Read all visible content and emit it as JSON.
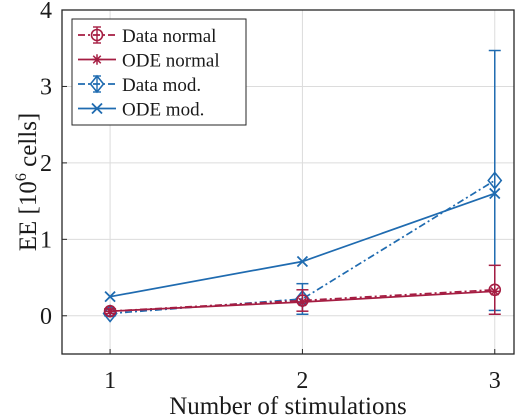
{
  "chart_data": {
    "type": "line",
    "xlabel": "Number of stimulations",
    "ylabel": "EE [10⁶ cells]",
    "ylabel_main": "EE [10",
    "ylabel_sup": "6",
    "ylabel_tail": " cells]",
    "xlim": [
      0.75,
      3.1
    ],
    "ylim": [
      -0.5,
      4
    ],
    "xticks": [
      1,
      2,
      3
    ],
    "yticks": [
      0,
      1,
      2,
      3,
      4
    ],
    "grid": true,
    "legend": "top-left",
    "series": [
      {
        "name": "Data normal",
        "color": "#a51d42",
        "line": "dashdot",
        "marker": "circle",
        "x": [
          1,
          2,
          3
        ],
        "y": [
          0.06,
          0.2,
          0.34
        ],
        "err": [
          0.03,
          0.14,
          0.32
        ]
      },
      {
        "name": "ODE normal",
        "color": "#a51d42",
        "line": "solid",
        "marker": "asterisk",
        "x": [
          1,
          2,
          3
        ],
        "y": [
          0.06,
          0.18,
          0.32
        ]
      },
      {
        "name": "Data mod.",
        "color": "#1f6bb0",
        "line": "dashdot",
        "marker": "diamond",
        "x": [
          1,
          2,
          3
        ],
        "y": [
          0.03,
          0.22,
          1.77
        ],
        "err": [
          0.03,
          0.2,
          1.7
        ]
      },
      {
        "name": "ODE mod.",
        "color": "#1f6bb0",
        "line": "solid",
        "marker": "x",
        "x": [
          1,
          2,
          3
        ],
        "y": [
          0.25,
          0.71,
          1.6
        ]
      }
    ]
  }
}
